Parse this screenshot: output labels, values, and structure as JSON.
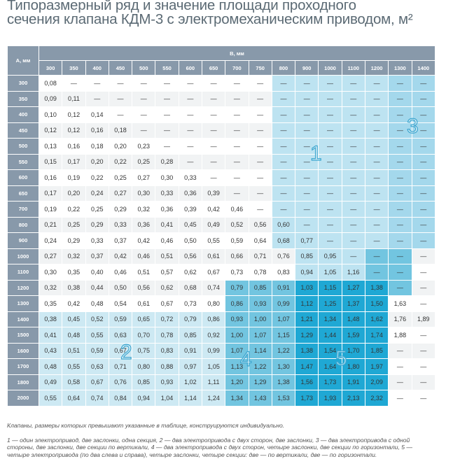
{
  "title": {
    "line1": "Типоразмерный ряд и значение площади проходного",
    "line2": "сечения клапана КДМ-3 с электромеханическим приводом, м²"
  },
  "table": {
    "row_header": "A, мм",
    "col_header": "B, мм",
    "columns": [
      "300",
      "350",
      "400",
      "450",
      "500",
      "550",
      "600",
      "650",
      "700",
      "750",
      "800",
      "900",
      "1000",
      "1100",
      "1200",
      "1300",
      "1400"
    ],
    "rows": [
      {
        "a": "300",
        "values": [
          "0,08",
          "—",
          "—",
          "—",
          "—",
          "—",
          "—",
          "—",
          "—",
          "—",
          "—",
          "—",
          "—",
          "—",
          "—",
          "—",
          "—"
        ]
      },
      {
        "a": "350",
        "values": [
          "0,09",
          "0,11",
          "—",
          "—",
          "—",
          "—",
          "—",
          "—",
          "—",
          "—",
          "—",
          "—",
          "—",
          "—",
          "—",
          "—",
          "—"
        ]
      },
      {
        "a": "400",
        "values": [
          "0,10",
          "0,12",
          "0,14",
          "—",
          "—",
          "—",
          "—",
          "—",
          "—",
          "—",
          "—",
          "—",
          "—",
          "—",
          "—",
          "—",
          "—"
        ]
      },
      {
        "a": "450",
        "values": [
          "0,12",
          "0,12",
          "0,16",
          "0,18",
          "—",
          "—",
          "—",
          "—",
          "—",
          "—",
          "—",
          "—",
          "—",
          "—",
          "—",
          "—",
          "—"
        ]
      },
      {
        "a": "500",
        "values": [
          "0,13",
          "0,16",
          "0,18",
          "0,20",
          "0,23",
          "—",
          "—",
          "—",
          "—",
          "—",
          "—",
          "—",
          "—",
          "—",
          "—",
          "—",
          "—"
        ]
      },
      {
        "a": "550",
        "values": [
          "0,15",
          "0,17",
          "0,20",
          "0,22",
          "0,25",
          "0,28",
          "—",
          "—",
          "—",
          "—",
          "—",
          "—",
          "—",
          "—",
          "—",
          "—",
          "—"
        ]
      },
      {
        "a": "600",
        "values": [
          "0,16",
          "0,19",
          "0,22",
          "0,25",
          "0,27",
          "0,30",
          "0,33",
          "—",
          "—",
          "—",
          "—",
          "—",
          "—",
          "—",
          "—",
          "—",
          "—"
        ]
      },
      {
        "a": "650",
        "values": [
          "0,17",
          "0,20",
          "0,24",
          "0,27",
          "0,30",
          "0,33",
          "0,36",
          "0,39",
          "—",
          "—",
          "—",
          "—",
          "—",
          "—",
          "—",
          "—",
          "—"
        ]
      },
      {
        "a": "700",
        "values": [
          "0,19",
          "0,22",
          "0,25",
          "0,29",
          "0,32",
          "0,36",
          "0,39",
          "0,42",
          "0,46",
          "—",
          "—",
          "—",
          "—",
          "—",
          "—",
          "—",
          "—"
        ]
      },
      {
        "a": "800",
        "values": [
          "0,21",
          "0,25",
          "0,29",
          "0,33",
          "0,36",
          "0,41",
          "0,45",
          "0,49",
          "0,52",
          "0,56",
          "0,60",
          "—",
          "—",
          "—",
          "—",
          "—",
          "—"
        ]
      },
      {
        "a": "900",
        "values": [
          "0,24",
          "0,29",
          "0,33",
          "0,37",
          "0,42",
          "0,46",
          "0,50",
          "0,55",
          "0,59",
          "0,64",
          "0,68",
          "0,77",
          "—",
          "—",
          "—",
          "—",
          "—"
        ]
      },
      {
        "a": "1000",
        "values": [
          "0,27",
          "0,32",
          "0,37",
          "0,42",
          "0,46",
          "0,51",
          "0,56",
          "0,61",
          "0,66",
          "0,71",
          "0,76",
          "0,85",
          "0,95",
          "—",
          "—",
          "—",
          "—"
        ]
      },
      {
        "a": "1100",
        "values": [
          "0,30",
          "0,35",
          "0,40",
          "0,46",
          "0,51",
          "0,57",
          "0,62",
          "0,67",
          "0,73",
          "0,78",
          "0,83",
          "0,94",
          "1,05",
          "1,16",
          "—",
          "—",
          "—"
        ]
      },
      {
        "a": "1200",
        "values": [
          "0,32",
          "0,38",
          "0,44",
          "0,50",
          "0,56",
          "0,62",
          "0,68",
          "0,74",
          "0,79",
          "0,85",
          "0,91",
          "1,03",
          "1,15",
          "1,27",
          "1,38",
          "—",
          "—"
        ]
      },
      {
        "a": "1300",
        "values": [
          "0,35",
          "0,42",
          "0,48",
          "0,54",
          "0,61",
          "0,67",
          "0,73",
          "0,80",
          "0,86",
          "0,93",
          "0,99",
          "1,12",
          "1,25",
          "1,37",
          "1,50",
          "1,63",
          "—"
        ]
      },
      {
        "a": "1400",
        "values": [
          "0,38",
          "0,45",
          "0,52",
          "0,59",
          "0,65",
          "0,72",
          "0,79",
          "0,86",
          "0,93",
          "1,00",
          "1,07",
          "1,21",
          "1,34",
          "1,48",
          "1,62",
          "1,76",
          "1,89"
        ]
      },
      {
        "a": "1500",
        "values": [
          "0,41",
          "0,48",
          "0,55",
          "0,63",
          "0,70",
          "0,78",
          "0,85",
          "0,92",
          "1,00",
          "1,07",
          "1,15",
          "1,29",
          "1,44",
          "1,59",
          "1,74",
          "1,88",
          "—"
        ]
      },
      {
        "a": "1600",
        "values": [
          "0,43",
          "0,51",
          "0,59",
          "0,67",
          "0,75",
          "0,83",
          "0,91",
          "0,99",
          "1,07",
          "1,14",
          "1,22",
          "1,38",
          "1,54",
          "1,70",
          "1,85",
          "—",
          "—"
        ]
      },
      {
        "a": "1700",
        "values": [
          "0,48",
          "0,55",
          "0,63",
          "0,71",
          "0,80",
          "0,88",
          "0,97",
          "1,05",
          "1,13",
          "1,22",
          "1,30",
          "1,47",
          "1,64",
          "1,80",
          "1,97",
          "—",
          "—"
        ]
      },
      {
        "a": "1800",
        "values": [
          "0,49",
          "0,58",
          "0,67",
          "0,76",
          "0,85",
          "0,93",
          "1,02",
          "1,11",
          "1,20",
          "1,29",
          "1,38",
          "1,56",
          "1,73",
          "1,91",
          "2,09",
          "—",
          "—"
        ]
      },
      {
        "a": "2000",
        "values": [
          "0,55",
          "0,64",
          "0,74",
          "0,84",
          "0,94",
          "1,04",
          "1,14",
          "1,24",
          "1,34",
          "1,43",
          "1,53",
          "1,73",
          "1,93",
          "2,13",
          "2,32",
          "—",
          "—"
        ]
      }
    ],
    "zone_labels": [
      "1",
      "2",
      "3",
      "4",
      "5"
    ],
    "colors": {
      "header": "#8899aa",
      "zone1": "#bde3f1",
      "zone2": "#cde9f3",
      "zone3": "#a4d8ec",
      "zone4": "#72c5e0",
      "zone5": "#1fa8d4"
    }
  },
  "notes": {
    "note1": "Клапаны, размеры которых превышают указанные в таблице, конструируются индивидуально.",
    "legend": "1 — один электропривод, две заслонки, одна секция, 2 — два электропривода с двух сторон, две заслонки, 3 — два электропривода с одной стороны, две заслонки, две секции по вертикали, 4 — два электропривода с двух сторон, четыре заслонки, две секции по горизонтали, 5 — четыре электропривода (по два слева и справа), четыре заслонки, четыре секции: две — по вертикали, две — по горизонтали."
  }
}
